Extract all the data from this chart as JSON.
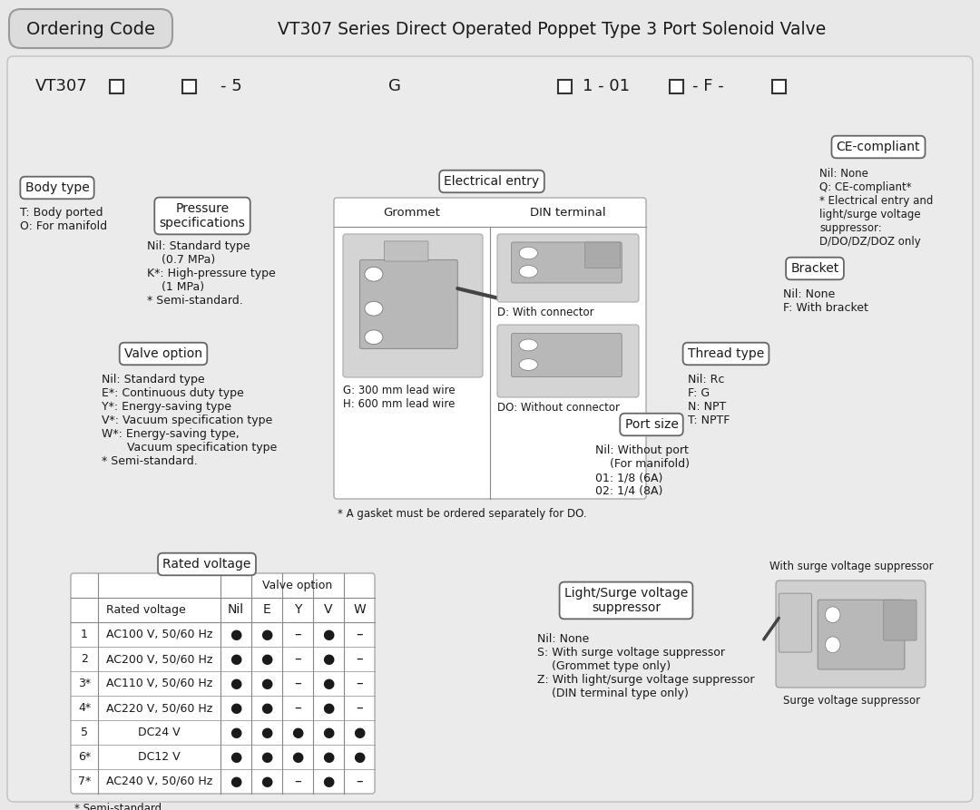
{
  "title": "VT307 Series Direct Operated Poppet Type 3 Port Solenoid Valve",
  "header_label": "Ordering Code",
  "bg_color": "#e8e8e8",
  "panel_color": "#ebebeb",
  "dark": "#1a1a1a",
  "body_type_label": "Body type",
  "body_type_text": "T: Body ported\nO: For manifold",
  "pressure_label": "Pressure\nspecifications",
  "pressure_text": "Nil: Standard type\n    (0.7 MPa)\nK*: High-pressure type\n    (1 MPa)\n* Semi-standard.",
  "valve_option_label": "Valve option",
  "valve_option_text": "Nil: Standard type\nE*: Continuous duty type\nY*: Energy-saving type\nV*: Vacuum specification type\nW*: Energy-saving type,\n       Vacuum specification type\n* Semi-standard.",
  "electrical_entry_label": "Electrical entry",
  "grommet_label": "Grommet",
  "din_label": "DIN terminal",
  "grommet_desc": "G: 300 mm lead wire\nH: 600 mm lead wire",
  "din_desc": "D: With connector",
  "do_desc": "DO: Without connector",
  "gasket_note": "* A gasket must be ordered separately for DO.",
  "port_size_label": "Port size",
  "port_size_text": "Nil: Without port\n    (For manifold)\n01: 1/8 (6A)\n02: 1/4 (8A)",
  "thread_type_label": "Thread type",
  "thread_type_text": "Nil: Rc\nF: G\nN: NPT\nT: NPTF",
  "bracket_label": "Bracket",
  "bracket_text": "Nil: None\nF: With bracket",
  "ce_label": "CE-compliant",
  "ce_text": "Nil: None\nQ: CE-compliant*\n* Electrical entry and\nlight/surge voltage\nsuppressor:\nD/DO/DZ/DOZ only",
  "rated_voltage_label": "Rated voltage",
  "light_surge_label": "Light/Surge voltage\nsuppressor",
  "light_surge_text": "Nil: None\nS: With surge voltage suppressor\n    (Grommet type only)\nZ: With light/surge voltage suppressor\n    (DIN terminal type only)",
  "table_headers": [
    "",
    "Valve option",
    "Nil",
    "E",
    "Y",
    "V",
    "W"
  ],
  "table_col2": "Rated voltage",
  "table_rows": [
    [
      "1",
      "AC100 V, 50/60 Hz",
      "●",
      "●",
      "–",
      "●",
      "–"
    ],
    [
      "2",
      "AC200 V, 50/60 Hz",
      "●",
      "●",
      "–",
      "●",
      "–"
    ],
    [
      "3*",
      "AC110 V, 50/60 Hz",
      "●",
      "●",
      "–",
      "●",
      "–"
    ],
    [
      "4*",
      "AC220 V, 50/60 Hz",
      "●",
      "●",
      "–",
      "●",
      "–"
    ],
    [
      "5",
      "DC24 V",
      "●",
      "●",
      "●",
      "●",
      "●"
    ],
    [
      "6*",
      "DC12 V",
      "●",
      "●",
      "●",
      "●",
      "●"
    ],
    [
      "7*",
      "AC240 V, 50/60 Hz",
      "●",
      "●",
      "–",
      "●",
      "–"
    ]
  ],
  "semi_standard_note": "* Semi-standard.",
  "surge_note": "With surge voltage suppressor",
  "surge_label_img": "Surge voltage suppressor"
}
